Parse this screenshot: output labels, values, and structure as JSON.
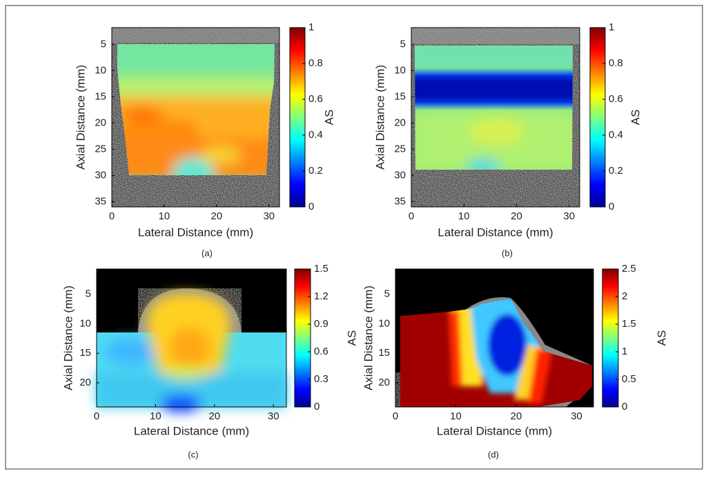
{
  "panels": [
    {
      "caption": "(a)",
      "x_label": "Lateral Distance (mm)",
      "y_label": "Axial Distance (mm)",
      "xlim": [
        0,
        32
      ],
      "ylim": [
        1.8,
        36
      ],
      "xticks": [
        0,
        10,
        20,
        30
      ],
      "yticks": [
        5,
        10,
        15,
        20,
        25,
        30,
        35
      ],
      "colorbar": {
        "label": "AS",
        "lim": [
          0,
          1
        ],
        "ticks": [
          0,
          0.2,
          0.4,
          0.6,
          0.8,
          1
        ]
      }
    },
    {
      "caption": "(b)",
      "x_label": "Lateral Distance (mm)",
      "y_label": "Axial Distance (mm)",
      "xlim": [
        0,
        32
      ],
      "ylim": [
        1.8,
        36
      ],
      "xticks": [
        0,
        10,
        20,
        30
      ],
      "yticks": [
        5,
        10,
        15,
        20,
        25,
        30,
        35
      ],
      "colorbar": {
        "label": "AS",
        "lim": [
          0,
          1
        ],
        "ticks": [
          0,
          0.2,
          0.4,
          0.6,
          0.8,
          1
        ]
      }
    },
    {
      "caption": "(c)",
      "x_label": "Lateral Distance (mm)",
      "y_label": "Axial Distance (mm)",
      "xlim": [
        0,
        32.2
      ],
      "ylim": [
        0.7,
        24.1
      ],
      "xticks": [
        0,
        10,
        20,
        30
      ],
      "yticks": [
        5,
        10,
        15,
        20
      ],
      "colorbar": {
        "label": "AS",
        "lim": [
          0,
          1.5
        ],
        "ticks": [
          0,
          0.3,
          0.6,
          0.9,
          1.2,
          1.5
        ]
      }
    },
    {
      "caption": "(d)",
      "x_label": "Lateral Distance (mm)",
      "y_label": "Axial Distance (mm)",
      "xlim": [
        0,
        32.8
      ],
      "ylim": [
        0.7,
        24.1
      ],
      "xticks": [
        0,
        10,
        20,
        30
      ],
      "yticks": [
        5,
        10,
        15,
        20
      ],
      "colorbar": {
        "label": "AS",
        "lim": [
          0,
          2.5
        ],
        "ticks": [
          0,
          0.5,
          1,
          1.5,
          2,
          2.5
        ]
      }
    }
  ]
}
